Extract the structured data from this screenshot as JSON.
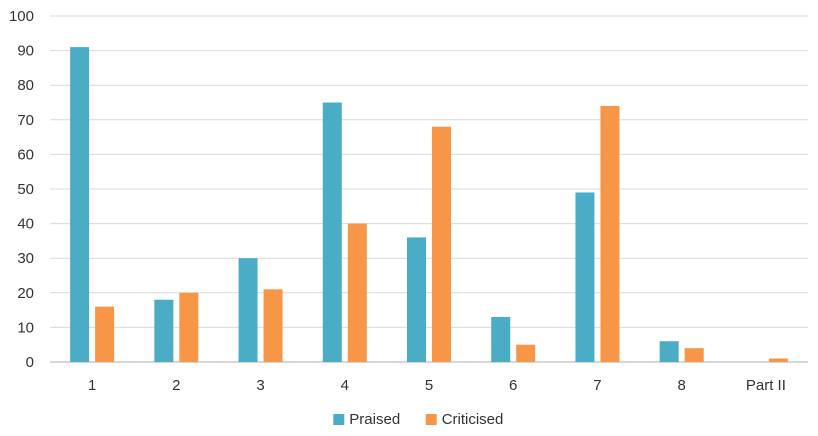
{
  "chart_data": {
    "type": "bar",
    "title": "",
    "xlabel": "",
    "ylabel": "",
    "categories": [
      "1",
      "2",
      "3",
      "4",
      "5",
      "6",
      "7",
      "8",
      "Part II"
    ],
    "series": [
      {
        "name": "Praised",
        "color": "#4bacc6",
        "values": [
          91,
          18,
          30,
          75,
          36,
          13,
          49,
          6,
          0
        ]
      },
      {
        "name": "Criticised",
        "color": "#f79646",
        "values": [
          16,
          20,
          21,
          40,
          68,
          5,
          74,
          4,
          1
        ]
      }
    ],
    "ylim": [
      0,
      100
    ],
    "yticks": [
      0,
      10,
      20,
      30,
      40,
      50,
      60,
      70,
      80,
      90,
      100
    ],
    "grid": true,
    "legend_position": "bottom"
  }
}
